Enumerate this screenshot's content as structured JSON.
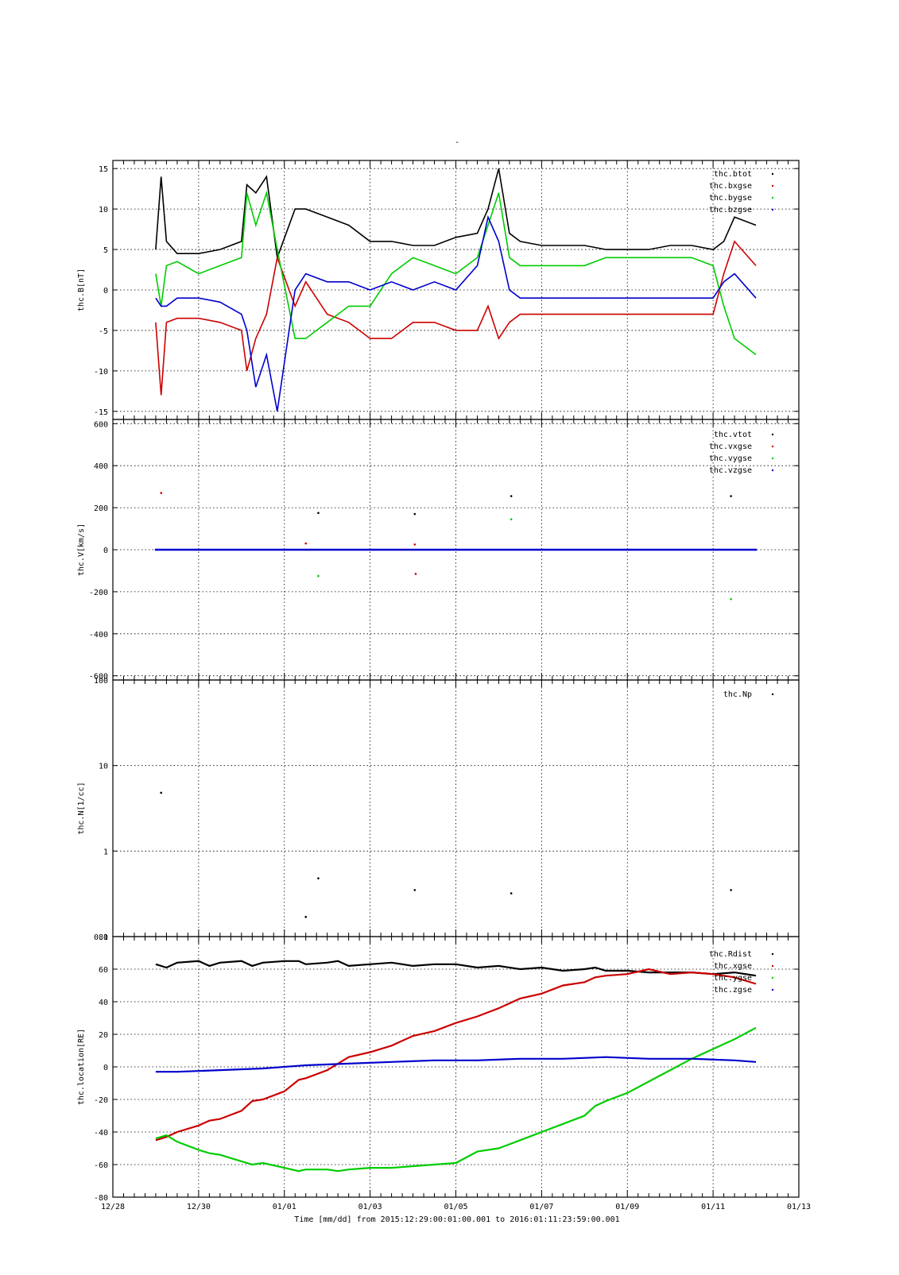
{
  "title_mark": "-",
  "colors": {
    "black": "#000000",
    "red": "#cc0000",
    "green": "#00cc00",
    "blue": "#0000cc",
    "background": "#ffffff"
  },
  "xaxis": {
    "label": "Time [mm/dd]  from 2015:12:29:00:01:00.001  to  2016:01:11:23:59:00.001",
    "range": [
      "2015-12-28",
      "2016-01-13"
    ],
    "ticks": [
      {
        "date": "2015-12-28",
        "label": "12/28"
      },
      {
        "date": "2015-12-30",
        "label": "12/30"
      },
      {
        "date": "2016-01-01",
        "label": "01/01"
      },
      {
        "date": "2016-01-03",
        "label": "01/03"
      },
      {
        "date": "2016-01-05",
        "label": "01/05"
      },
      {
        "date": "2016-01-07",
        "label": "01/07"
      },
      {
        "date": "2016-01-09",
        "label": "01/09"
      },
      {
        "date": "2016-01-11",
        "label": "01/11"
      },
      {
        "date": "2016-01-13",
        "label": "01/13"
      }
    ]
  },
  "chart_data": [
    {
      "type": "scatter",
      "ylabel": "thc.B[nT]",
      "ylim": [
        -16,
        16
      ],
      "yticks": [
        -15,
        -10,
        -5,
        0,
        5,
        10,
        15
      ],
      "grid": true,
      "legend_position": "top-right",
      "series": [
        {
          "name": "thc.btot",
          "color": "#000000",
          "x": [
            "2015-12-29 00:00",
            "2015-12-29 03:00",
            "2015-12-29 06:00",
            "2015-12-29 12:00",
            "2015-12-30 00:00",
            "2015-12-30 12:00",
            "2015-12-31 00:00",
            "2015-12-31 03:00",
            "2015-12-31 08:00",
            "2015-12-31 14:00",
            "2015-12-31 20:00",
            "2016-01-01 06:00",
            "2016-01-01 12:00",
            "2016-01-02 00:00",
            "2016-01-02 12:00",
            "2016-01-03 00:00",
            "2016-01-03 12:00",
            "2016-01-04 00:00",
            "2016-01-04 12:00",
            "2016-01-05 00:00",
            "2016-01-05 12:00",
            "2016-01-05 18:00",
            "2016-01-06 00:00",
            "2016-01-06 06:00",
            "2016-01-06 12:00",
            "2016-01-07 00:00",
            "2016-01-07 12:00",
            "2016-01-08 00:00",
            "2016-01-08 12:00",
            "2016-01-09 00:00",
            "2016-01-09 12:00",
            "2016-01-10 00:00",
            "2016-01-10 12:00",
            "2016-01-11 00:00",
            "2016-01-11 06:00",
            "2016-01-11 12:00",
            "2016-01-11 23:59"
          ],
          "values": [
            5,
            14,
            6,
            4.5,
            4.5,
            5,
            6,
            13,
            12,
            14,
            4,
            10,
            10,
            9,
            8,
            6,
            6,
            5.5,
            5.5,
            6.5,
            7,
            10,
            15,
            7,
            6,
            5.5,
            5.5,
            5.5,
            5,
            5,
            5,
            5.5,
            5.5,
            5,
            6,
            9,
            8
          ]
        },
        {
          "name": "thc.bxgse",
          "color": "#cc0000",
          "x": [
            "2015-12-29 00:00",
            "2015-12-29 03:00",
            "2015-12-29 06:00",
            "2015-12-29 12:00",
            "2015-12-30 00:00",
            "2015-12-30 12:00",
            "2015-12-31 00:00",
            "2015-12-31 03:00",
            "2015-12-31 08:00",
            "2015-12-31 14:00",
            "2015-12-31 20:00",
            "2016-01-01 06:00",
            "2016-01-01 12:00",
            "2016-01-02 00:00",
            "2016-01-02 12:00",
            "2016-01-03 00:00",
            "2016-01-03 12:00",
            "2016-01-04 00:00",
            "2016-01-04 12:00",
            "2016-01-05 00:00",
            "2016-01-05 12:00",
            "2016-01-05 18:00",
            "2016-01-06 00:00",
            "2016-01-06 06:00",
            "2016-01-06 12:00",
            "2016-01-07 00:00",
            "2016-01-07 12:00",
            "2016-01-08 00:00",
            "2016-01-08 12:00",
            "2016-01-09 00:00",
            "2016-01-09 12:00",
            "2016-01-10 00:00",
            "2016-01-10 12:00",
            "2016-01-11 00:00",
            "2016-01-11 06:00",
            "2016-01-11 12:00",
            "2016-01-11 23:59"
          ],
          "values": [
            -4,
            -13,
            -4,
            -3.5,
            -3.5,
            -4,
            -5,
            -10,
            -6,
            -3,
            4,
            -2,
            1,
            -3,
            -4,
            -6,
            -6,
            -4,
            -4,
            -5,
            -5,
            -2,
            -6,
            -4,
            -3,
            -3,
            -3,
            -3,
            -3,
            -3,
            -3,
            -3,
            -3,
            -3,
            2,
            6,
            3
          ]
        },
        {
          "name": "thc.bygse",
          "color": "#00cc00",
          "x": [
            "2015-12-29 00:00",
            "2015-12-29 03:00",
            "2015-12-29 06:00",
            "2015-12-29 12:00",
            "2015-12-30 00:00",
            "2015-12-30 12:00",
            "2015-12-31 00:00",
            "2015-12-31 03:00",
            "2015-12-31 08:00",
            "2015-12-31 14:00",
            "2015-12-31 20:00",
            "2016-01-01 06:00",
            "2016-01-01 12:00",
            "2016-01-02 00:00",
            "2016-01-02 12:00",
            "2016-01-03 00:00",
            "2016-01-03 12:00",
            "2016-01-04 00:00",
            "2016-01-04 12:00",
            "2016-01-05 00:00",
            "2016-01-05 12:00",
            "2016-01-05 18:00",
            "2016-01-06 00:00",
            "2016-01-06 06:00",
            "2016-01-06 12:00",
            "2016-01-07 00:00",
            "2016-01-07 12:00",
            "2016-01-08 00:00",
            "2016-01-08 12:00",
            "2016-01-09 00:00",
            "2016-01-09 12:00",
            "2016-01-10 00:00",
            "2016-01-10 12:00",
            "2016-01-11 00:00",
            "2016-01-11 06:00",
            "2016-01-11 12:00",
            "2016-01-11 23:59"
          ],
          "values": [
            2,
            -2,
            3,
            3.5,
            2,
            3,
            4,
            12,
            8,
            12,
            5,
            -6,
            -6,
            -4,
            -2,
            -2,
            2,
            4,
            3,
            2,
            4,
            8,
            12,
            4,
            3,
            3,
            3,
            3,
            4,
            4,
            4,
            4,
            4,
            3,
            -2,
            -6,
            -8
          ]
        },
        {
          "name": "thc.bzgse",
          "color": "#0000cc",
          "x": [
            "2015-12-29 00:00",
            "2015-12-29 03:00",
            "2015-12-29 06:00",
            "2015-12-29 12:00",
            "2015-12-30 00:00",
            "2015-12-30 12:00",
            "2015-12-31 00:00",
            "2015-12-31 03:00",
            "2015-12-31 08:00",
            "2015-12-31 14:00",
            "2015-12-31 20:00",
            "2016-01-01 06:00",
            "2016-01-01 12:00",
            "2016-01-02 00:00",
            "2016-01-02 12:00",
            "2016-01-03 00:00",
            "2016-01-03 12:00",
            "2016-01-04 00:00",
            "2016-01-04 12:00",
            "2016-01-05 00:00",
            "2016-01-05 12:00",
            "2016-01-05 18:00",
            "2016-01-06 00:00",
            "2016-01-06 06:00",
            "2016-01-06 12:00",
            "2016-01-07 00:00",
            "2016-01-07 12:00",
            "2016-01-08 00:00",
            "2016-01-08 12:00",
            "2016-01-09 00:00",
            "2016-01-09 12:00",
            "2016-01-10 00:00",
            "2016-01-10 12:00",
            "2016-01-11 00:00",
            "2016-01-11 06:00",
            "2016-01-11 12:00",
            "2016-01-11 23:59"
          ],
          "values": [
            -1,
            -2,
            -2,
            -1,
            -1,
            -1.5,
            -3,
            -5,
            -12,
            -8,
            -15,
            0,
            2,
            1,
            1,
            0,
            1,
            0,
            1,
            0,
            3,
            9,
            6,
            0,
            -1,
            -1,
            -1,
            -1,
            -1,
            -1,
            -1,
            -1,
            -1,
            -1,
            1,
            2,
            -1
          ]
        }
      ]
    },
    {
      "type": "scatter",
      "ylabel": "thc.V[km/s]",
      "ylim": [
        -620,
        620
      ],
      "yticks": [
        -600,
        -400,
        -200,
        0,
        200,
        400,
        600
      ],
      "grid": true,
      "legend_position": "top-right",
      "series": [
        {
          "name": "thc.vtot",
          "color": "#000000",
          "x": [
            "2016-01-01 19:00",
            "2016-01-04 01:00",
            "2016-01-06 07:00",
            "2016-01-11 10:00"
          ],
          "values": [
            175,
            170,
            255,
            255
          ]
        },
        {
          "name": "thc.vxgse",
          "color": "#cc0000",
          "x": [
            "2015-12-29 03:00",
            "2016-01-01 12:00",
            "2016-01-04 01:00",
            "2016-01-04 01:30"
          ],
          "values": [
            270,
            30,
            25,
            -115
          ]
        },
        {
          "name": "thc.vygse",
          "color": "#00cc00",
          "x": [
            "2016-01-01 19:00",
            "2016-01-06 07:00",
            "2016-01-11 10:00"
          ],
          "values": [
            -125,
            145,
            -235
          ]
        },
        {
          "name": "thc.vzgse",
          "color": "#0000cc",
          "x": [
            "2015-12-29 00:00",
            "2016-01-11 23:59"
          ],
          "values": [
            0,
            0
          ]
        }
      ]
    },
    {
      "type": "scatter",
      "ylabel": "thc.N[1/cc]",
      "yscale": "log",
      "ylim": [
        0.1,
        100
      ],
      "yticks": [
        0.1,
        1,
        10,
        100
      ],
      "ytick_labels": [
        "0.1",
        "1",
        "10",
        "100"
      ],
      "grid": true,
      "legend_position": "top-right",
      "series": [
        {
          "name": "thc.Np",
          "color": "#000000",
          "x": [
            "2015-12-29 03:00",
            "2016-01-01 12:00",
            "2016-01-01 19:00",
            "2016-01-04 01:00",
            "2016-01-06 07:00",
            "2016-01-11 10:00"
          ],
          "values": [
            4.8,
            0.17,
            0.48,
            0.35,
            0.32,
            0.35
          ]
        }
      ]
    },
    {
      "type": "line",
      "ylabel": "thc.location[RE]",
      "ylim": [
        -80,
        80
      ],
      "yticks": [
        -80,
        -60,
        -40,
        -20,
        0,
        20,
        40,
        60,
        80
      ],
      "grid": true,
      "legend_position": "top-right",
      "series": [
        {
          "name": "thc.Rdist",
          "color": "#000000",
          "x": [
            "2015-12-29 00:00",
            "2015-12-29 06:00",
            "2015-12-29 12:00",
            "2015-12-30 00:00",
            "2015-12-30 06:00",
            "2015-12-30 12:00",
            "2015-12-31 00:00",
            "2015-12-31 06:00",
            "2015-12-31 12:00",
            "2016-01-01 00:00",
            "2016-01-01 08:00",
            "2016-01-01 12:00",
            "2016-01-02 00:00",
            "2016-01-02 06:00",
            "2016-01-02 12:00",
            "2016-01-03 00:00",
            "2016-01-03 12:00",
            "2016-01-04 00:00",
            "2016-01-04 12:00",
            "2016-01-05 00:00",
            "2016-01-05 12:00",
            "2016-01-06 00:00",
            "2016-01-06 12:00",
            "2016-01-07 00:00",
            "2016-01-07 12:00",
            "2016-01-08 00:00",
            "2016-01-08 06:00",
            "2016-01-08 12:00",
            "2016-01-09 00:00",
            "2016-01-09 12:00",
            "2016-01-10 00:00",
            "2016-01-10 12:00",
            "2016-01-11 00:00",
            "2016-01-11 12:00",
            "2016-01-11 23:59"
          ],
          "values": [
            63,
            61,
            64,
            65,
            62,
            64,
            65,
            62,
            64,
            65,
            65,
            63,
            64,
            65,
            62,
            63,
            64,
            62,
            63,
            63,
            61,
            62,
            60,
            61,
            59,
            60,
            61,
            59,
            59,
            58,
            58,
            58,
            57,
            58,
            56
          ]
        },
        {
          "name": "thc.xgse",
          "color": "#cc0000",
          "x": [
            "2015-12-29 00:00",
            "2015-12-29 06:00",
            "2015-12-29 12:00",
            "2015-12-30 00:00",
            "2015-12-30 06:00",
            "2015-12-30 12:00",
            "2015-12-31 00:00",
            "2015-12-31 06:00",
            "2015-12-31 12:00",
            "2016-01-01 00:00",
            "2016-01-01 08:00",
            "2016-01-01 12:00",
            "2016-01-02 00:00",
            "2016-01-02 06:00",
            "2016-01-02 12:00",
            "2016-01-03 00:00",
            "2016-01-03 12:00",
            "2016-01-04 00:00",
            "2016-01-04 12:00",
            "2016-01-05 00:00",
            "2016-01-05 12:00",
            "2016-01-06 00:00",
            "2016-01-06 12:00",
            "2016-01-07 00:00",
            "2016-01-07 12:00",
            "2016-01-08 00:00",
            "2016-01-08 06:00",
            "2016-01-08 12:00",
            "2016-01-09 00:00",
            "2016-01-09 12:00",
            "2016-01-10 00:00",
            "2016-01-10 12:00",
            "2016-01-11 00:00",
            "2016-01-11 12:00",
            "2016-01-11 23:59"
          ],
          "values": [
            -45,
            -43,
            -40,
            -36,
            -33,
            -32,
            -27,
            -21,
            -20,
            -15,
            -8,
            -7,
            -2,
            2,
            6,
            9,
            13,
            19,
            22,
            27,
            31,
            36,
            42,
            45,
            50,
            52,
            55,
            56,
            57,
            60,
            57,
            58,
            57,
            55,
            51
          ]
        },
        {
          "name": "thc.ygse",
          "color": "#00cc00",
          "x": [
            "2015-12-29 00:00",
            "2015-12-29 06:00",
            "2015-12-29 12:00",
            "2015-12-30 00:00",
            "2015-12-30 06:00",
            "2015-12-30 12:00",
            "2015-12-31 00:00",
            "2015-12-31 06:00",
            "2015-12-31 12:00",
            "2016-01-01 00:00",
            "2016-01-01 08:00",
            "2016-01-01 12:00",
            "2016-01-02 00:00",
            "2016-01-02 06:00",
            "2016-01-02 12:00",
            "2016-01-03 00:00",
            "2016-01-03 12:00",
            "2016-01-04 00:00",
            "2016-01-04 12:00",
            "2016-01-05 00:00",
            "2016-01-05 12:00",
            "2016-01-06 00:00",
            "2016-01-06 12:00",
            "2016-01-07 00:00",
            "2016-01-07 12:00",
            "2016-01-08 00:00",
            "2016-01-08 06:00",
            "2016-01-08 12:00",
            "2016-01-09 00:00",
            "2016-01-09 12:00",
            "2016-01-10 00:00",
            "2016-01-10 12:00",
            "2016-01-11 00:00",
            "2016-01-11 12:00",
            "2016-01-11 23:59"
          ],
          "values": [
            -44,
            -42,
            -46,
            -51,
            -53,
            -54,
            -58,
            -60,
            -59,
            -62,
            -64,
            -63,
            -63,
            -64,
            -63,
            -62,
            -62,
            -61,
            -60,
            -59,
            -52,
            -50,
            -45,
            -40,
            -35,
            -30,
            -24,
            -21,
            -16,
            -9,
            -2,
            5,
            11,
            17,
            24
          ]
        },
        {
          "name": "thc.zgse",
          "color": "#0000cc",
          "x": [
            "2015-12-29 00:00",
            "2015-12-29 12:00",
            "2015-12-30 12:00",
            "2015-12-31 12:00",
            "2016-01-01 12:00",
            "2016-01-02 12:00",
            "2016-01-03 12:00",
            "2016-01-04 12:00",
            "2016-01-05 12:00",
            "2016-01-06 12:00",
            "2016-01-07 12:00",
            "2016-01-08 12:00",
            "2016-01-09 12:00",
            "2016-01-10 12:00",
            "2016-01-11 12:00",
            "2016-01-11 23:59"
          ],
          "values": [
            -3,
            -3,
            -2,
            -1,
            1,
            2,
            3,
            4,
            4,
            5,
            5,
            6,
            5,
            5,
            4,
            3
          ]
        }
      ]
    }
  ]
}
